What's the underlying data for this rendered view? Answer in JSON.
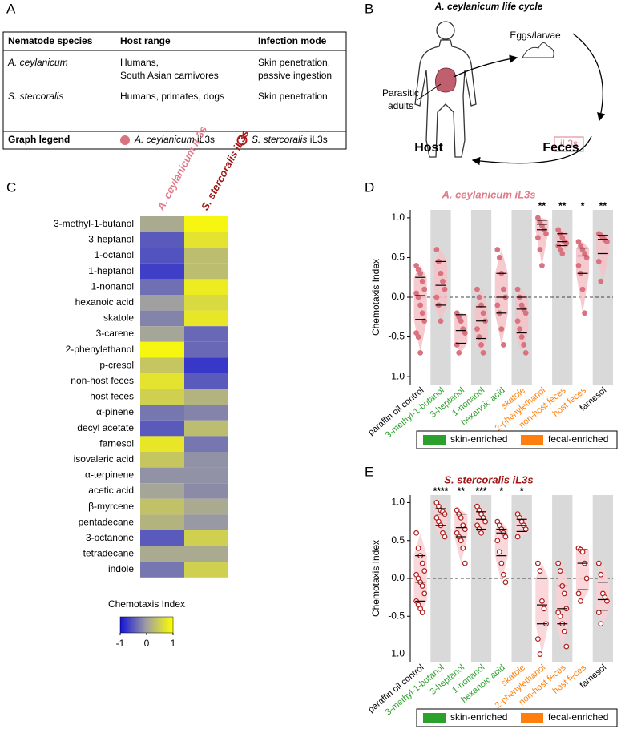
{
  "panels": [
    "A",
    "B",
    "C",
    "D",
    "E"
  ],
  "table": {
    "header": [
      "Nematode species",
      "Host range",
      "Infection mode"
    ],
    "rows": [
      [
        "A. ceylanicum",
        [
          "Humans,",
          "South Asian carnivores"
        ],
        [
          "Skin penetration,",
          "passive ingestion"
        ]
      ],
      [
        "S. stercoralis",
        "Humans, primates, dogs",
        "Skin penetration"
      ]
    ],
    "legend": {
      "label": "Graph legend",
      "items": [
        {
          "species": "A. ceylanicum",
          "stage": "iL3s"
        },
        {
          "species": "S. stercoralis",
          "stage": "iL3s"
        }
      ]
    }
  },
  "lifecycle": {
    "title": "A. ceylanicum life cycle",
    "adults": [
      "Parasitic",
      "adults"
    ],
    "eggs": "Eggs/larvae",
    "il3": "iL3s",
    "host": "Host",
    "feces": "Feces"
  },
  "chart_data": [
    {
      "type": "heatmap",
      "columns": [
        "A. ceylanicum iL3s",
        "S. stercoralis iL3s"
      ],
      "column_colors": [
        "#e07a88",
        "#a01414"
      ],
      "rows": [
        "3-methyl-1-butanol",
        "3-heptanol",
        "1-octanol",
        "1-heptanol",
        "1-nonanol",
        "hexanoic acid",
        "skatole",
        "3-carene",
        "2-phenylethanol",
        "p-cresol",
        "non-host feces",
        "host feces",
        "α-pinene",
        "decyl acetate",
        "farnesol",
        "isovaleric acid",
        "α-terpinene",
        "acetic acid",
        "β-myrcene",
        "pentadecane",
        "3-octanone",
        "tetradecane",
        "indole"
      ],
      "values": [
        [
          0.1,
          0.9
        ],
        [
          -0.5,
          0.7
        ],
        [
          -0.55,
          0.3
        ],
        [
          -0.7,
          0.3
        ],
        [
          -0.35,
          0.8
        ],
        [
          0.0,
          0.6
        ],
        [
          -0.2,
          0.75
        ],
        [
          0.05,
          -0.4
        ],
        [
          0.9,
          -0.4
        ],
        [
          0.4,
          -0.75
        ],
        [
          0.7,
          -0.5
        ],
        [
          0.5,
          0.2
        ],
        [
          -0.3,
          -0.2
        ],
        [
          -0.5,
          0.3
        ],
        [
          0.75,
          -0.3
        ],
        [
          0.4,
          -0.1
        ],
        [
          -0.1,
          -0.1
        ],
        [
          0.05,
          -0.15
        ],
        [
          0.35,
          0.1
        ],
        [
          0.2,
          -0.05
        ],
        [
          -0.5,
          0.5
        ],
        [
          0.1,
          0.1
        ],
        [
          -0.3,
          0.5
        ]
      ],
      "colorbar": {
        "label": "Chemotaxis Index",
        "lim": [
          -1,
          1
        ],
        "ticks": [
          -1,
          0,
          1
        ],
        "colors": [
          "#1414d8",
          "#a0a0a0",
          "#ffff00"
        ]
      }
    },
    {
      "type": "strip",
      "title": "A. ceylanicum iL3s",
      "title_color": "#e07a88",
      "y_label": "Chemotaxis Index",
      "categories": [
        "paraffin oil control",
        "3-methyl-1-butanol",
        "3-heptanol",
        "1-nonanol",
        "hexanoic acid",
        "skatole",
        "2-phenylethanol",
        "non-host feces",
        "host feces",
        "farnesol"
      ],
      "category_colors": [
        "#000000",
        "#2ca02c",
        "#2ca02c",
        "#2ca02c",
        "#2ca02c",
        "#ff7f0e",
        "#ff7f0e",
        "#ff7f0e",
        "#ff7f0e",
        "#000000"
      ],
      "values": [
        [
          0.4,
          0.35,
          0.3,
          0.2,
          0.1,
          0.05,
          0,
          -0.1,
          -0.2,
          -0.3,
          -0.45,
          -0.5,
          -0.7
        ],
        [
          0.6,
          0.45,
          0.3,
          0.2,
          0.1,
          0,
          -0.1,
          -0.3
        ],
        [
          -0.2,
          -0.25,
          -0.3,
          -0.4,
          -0.45,
          -0.6,
          -0.7
        ],
        [
          0.1,
          0,
          -0.1,
          -0.2,
          -0.3,
          -0.4,
          -0.5,
          -0.6,
          -0.7
        ],
        [
          0.6,
          0.5,
          0.3,
          0.1,
          0,
          -0.1,
          -0.2,
          -0.4,
          -0.6
        ],
        [
          0.1,
          0,
          -0.1,
          -0.15,
          -0.2,
          -0.3,
          -0.4,
          -0.5,
          -0.6,
          -0.7
        ],
        [
          1.0,
          0.95,
          0.9,
          0.85,
          0.8,
          0.75,
          0.6,
          0.4
        ],
        [
          0.85,
          0.8,
          0.75,
          0.7,
          0.68,
          0.65,
          0.6,
          0.55
        ],
        [
          0.7,
          0.65,
          0.6,
          0.55,
          0.5,
          0.4,
          0.3,
          0.1,
          -0.2
        ],
        [
          0.8,
          0.78,
          0.75,
          0.72,
          0.7,
          0.45,
          0.2
        ]
      ],
      "quartiles": [
        [
          -0.28,
          0.02,
          0.25
        ],
        [
          -0.1,
          0.15,
          0.45
        ],
        [
          -0.58,
          -0.42,
          -0.22
        ],
        [
          -0.52,
          -0.3,
          -0.12
        ],
        [
          -0.2,
          0,
          0.3
        ],
        [
          -0.45,
          -0.15,
          0
        ],
        [
          0.85,
          0.92,
          0.97
        ],
        [
          0.65,
          0.7,
          0.8
        ],
        [
          0.3,
          0.52,
          0.62
        ],
        [
          0.55,
          0.73,
          0.78
        ]
      ],
      "significance": [
        null,
        null,
        null,
        null,
        null,
        null,
        "**",
        "**",
        "*",
        "**"
      ],
      "point_fill": "#d9737f",
      "point_stroke": "#d9737f",
      "violin_color": "#f4c2c8",
      "ylim": [
        -1.1,
        1.1
      ],
      "yticks": [
        {
          "value": 1,
          "label": "1.0"
        },
        {
          "value": 0.5,
          "label": "0.5"
        },
        {
          "value": 0,
          "label": "0.0"
        },
        {
          "value": -0.5,
          "label": "-0.5"
        },
        {
          "value": -1,
          "label": "-1.0"
        }
      ],
      "reference_line": 0,
      "legend": [
        {
          "name": "skin-enriched",
          "color": "#2ca02c"
        },
        {
          "name": "fecal-enriched",
          "color": "#ff7f0e"
        }
      ]
    },
    {
      "type": "strip",
      "title": "S. stercoralis iL3s",
      "title_color": "#a01414",
      "y_label": "Chemotaxis Index",
      "categories": [
        "paraffin oil control",
        "3-methyl-1-butanol",
        "3-heptanol",
        "1-nonanol",
        "hexanoic acid",
        "skatole",
        "2-phenylethanol",
        "non-host feces",
        "host feces",
        "farnesol"
      ],
      "category_colors": [
        "#000000",
        "#2ca02c",
        "#2ca02c",
        "#2ca02c",
        "#2ca02c",
        "#ff7f0e",
        "#ff7f0e",
        "#ff7f0e",
        "#ff7f0e",
        "#000000"
      ],
      "values": [
        [
          0.6,
          0.4,
          0.3,
          0.2,
          0.1,
          0.05,
          0,
          -0.05,
          -0.1,
          -0.2,
          -0.3,
          -0.35,
          -0.4,
          -0.45
        ],
        [
          1.0,
          0.95,
          0.9,
          0.88,
          0.85,
          0.8,
          0.75,
          0.7,
          0.6,
          0.55
        ],
        [
          0.9,
          0.85,
          0.8,
          0.7,
          0.65,
          0.6,
          0.55,
          0.5,
          0.4,
          0.2
        ],
        [
          0.95,
          0.9,
          0.85,
          0.8,
          0.75,
          0.7,
          0.65,
          0.6
        ],
        [
          0.75,
          0.7,
          0.65,
          0.6,
          0.55,
          0.5,
          0.35,
          0.2,
          0.05,
          -0.05
        ],
        [
          0.85,
          0.8,
          0.75,
          0.7,
          0.65,
          0.55
        ],
        [
          0.2,
          0.1,
          -0.3,
          -0.4,
          -0.6,
          -0.8,
          -1.0
        ],
        [
          0.2,
          0.1,
          -0.1,
          -0.2,
          -0.4,
          -0.45,
          -0.5,
          -0.6,
          -0.7,
          -0.9
        ],
        [
          0.4,
          0.38,
          0.35,
          0.2,
          0,
          -0.2,
          -0.3
        ],
        [
          0.2,
          0.05,
          -0.2,
          -0.25,
          -0.3,
          -0.45,
          -0.6
        ]
      ],
      "quartiles": [
        [
          -0.3,
          -0.05,
          0.3
        ],
        [
          0.7,
          0.85,
          0.92
        ],
        [
          0.55,
          0.67,
          0.85
        ],
        [
          0.65,
          0.78,
          0.88
        ],
        [
          0.3,
          0.6,
          0.65
        ],
        [
          0.62,
          0.7,
          0.78
        ],
        [
          -0.6,
          -0.35,
          0
        ],
        [
          -0.6,
          -0.4,
          -0.1
        ],
        [
          -0.15,
          0.2,
          0.38
        ],
        [
          -0.42,
          -0.28,
          -0.05
        ]
      ],
      "significance": [
        null,
        "****",
        "**",
        "***",
        "*",
        "*",
        null,
        null,
        null,
        null
      ],
      "point_fill": "#ffffff",
      "point_stroke": "#b01c1c",
      "violin_color": "#f8d0d4",
      "ylim": [
        -1.1,
        1.1
      ],
      "yticks": [
        {
          "value": 1,
          "label": "1.0"
        },
        {
          "value": 0.5,
          "label": "0.5"
        },
        {
          "value": 0,
          "label": "0.0"
        },
        {
          "value": -0.5,
          "label": "-0.5"
        },
        {
          "value": -1,
          "label": "-1.0"
        }
      ],
      "reference_line": 0,
      "legend": [
        {
          "name": "skin-enriched",
          "color": "#2ca02c"
        },
        {
          "name": "fecal-enriched",
          "color": "#ff7f0e"
        }
      ]
    }
  ]
}
